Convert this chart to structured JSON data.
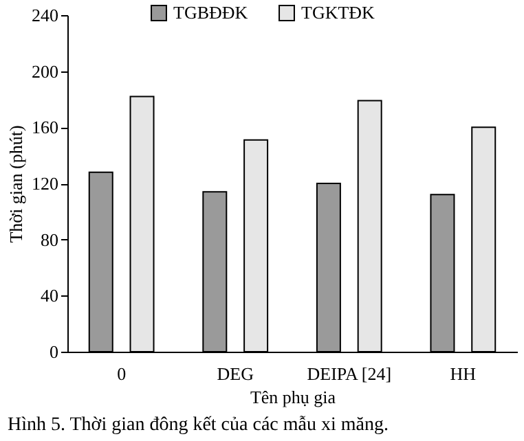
{
  "chart_data": {
    "type": "bar",
    "xlabel": "Tên phụ gia",
    "ylabel": "Thời gian (phút)",
    "categories": [
      "0",
      "DEG",
      "DEIPA [24]",
      "HH"
    ],
    "series": [
      {
        "name": "TGBĐĐK",
        "color": "#9a9a9a",
        "values": [
          128,
          114,
          120,
          112
        ]
      },
      {
        "name": "TGKTĐK",
        "color": "#e6e6e6",
        "values": [
          182,
          151,
          179,
          160
        ]
      }
    ],
    "ylim": [
      0,
      240
    ],
    "yticks": [
      0,
      40,
      80,
      120,
      160,
      200,
      240
    ],
    "grid": false,
    "legend": "top",
    "annotations": [
      "Hình 5. Thời gian đông kết của các mẫu xi măng."
    ]
  }
}
